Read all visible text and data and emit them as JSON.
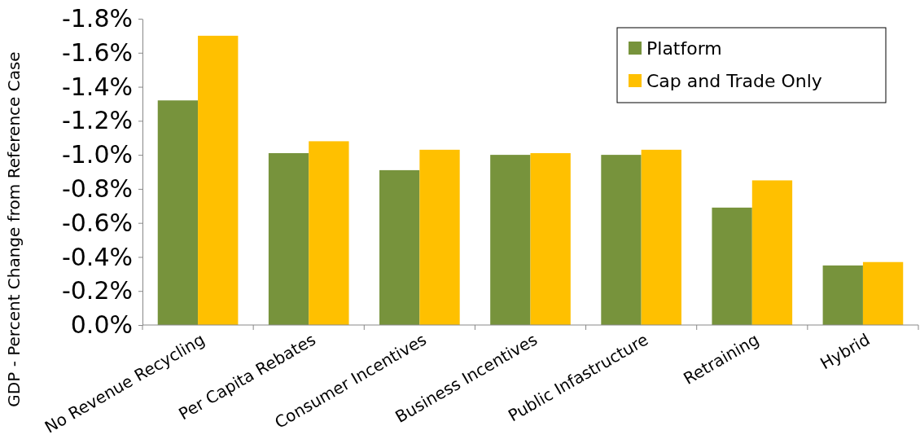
{
  "chart_data": {
    "type": "bar",
    "ylabel": "GDP - Percent Change from Reference Case",
    "categories": [
      "No Revenue Recycling",
      "Per Capita Rebates",
      "Consumer Incentives",
      "Business Incentives",
      "Public Infastructure",
      "Retraining",
      "Hybrid"
    ],
    "series": [
      {
        "name": "Platform",
        "color": "#77933c",
        "values": [
          -1.32,
          -1.01,
          -0.91,
          -1.0,
          -1.0,
          -0.69,
          -0.35
        ]
      },
      {
        "name": "Cap and Trade Only",
        "color": "#ffc000",
        "values": [
          -1.7,
          -1.08,
          -1.03,
          -1.01,
          -1.03,
          -0.85,
          -0.37
        ]
      }
    ],
    "ylim": [
      0,
      -1.8
    ],
    "yticks": [
      {
        "value": 0,
        "label": "0.0%"
      },
      {
        "value": -0.2,
        "label": "-0.2%"
      },
      {
        "value": -0.4,
        "label": "-0.4%"
      },
      {
        "value": -0.6,
        "label": "-0.6%"
      },
      {
        "value": -0.8,
        "label": "-0.8%"
      },
      {
        "value": -1.0,
        "label": "-1.0%"
      },
      {
        "value": -1.2,
        "label": "-1.2%"
      },
      {
        "value": -1.4,
        "label": "-1.4%"
      },
      {
        "value": -1.6,
        "label": "-1.6%"
      },
      {
        "value": -1.8,
        "label": "-1.8%"
      }
    ],
    "grid": false,
    "legend": "top right"
  }
}
